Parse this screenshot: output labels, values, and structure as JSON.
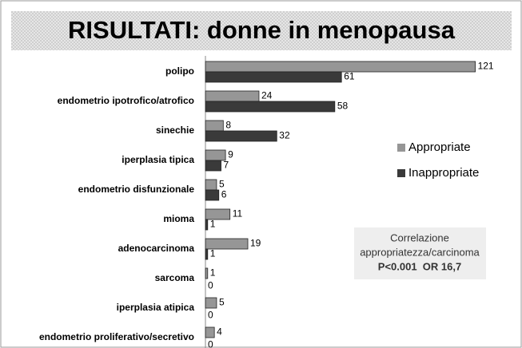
{
  "chart_data": {
    "type": "hbar",
    "title": "RISULTATI: donne in menopausa",
    "categories": [
      "polipo",
      "endometrio ipotrofico/atrofico",
      "sinechie",
      "iperplasia tipica",
      "endometrio disfunzionale",
      "mioma",
      "adenocarcinoma",
      "sarcoma",
      "iperplasia atipica",
      "endometrio proliferativo/secretivo"
    ],
    "series": [
      {
        "name": "Appropriate",
        "color": "#969696",
        "values": [
          121,
          24,
          8,
          9,
          5,
          11,
          19,
          1,
          5,
          4
        ]
      },
      {
        "name": "Inappropriate",
        "color": "#3a3a3a",
        "values": [
          61,
          58,
          32,
          7,
          6,
          1,
          1,
          0,
          0,
          0
        ]
      }
    ],
    "legend": "right",
    "annotation": [
      "Correlazione",
      "appropriatezza/carcinoma",
      "P<0.001  OR 16,7"
    ]
  }
}
